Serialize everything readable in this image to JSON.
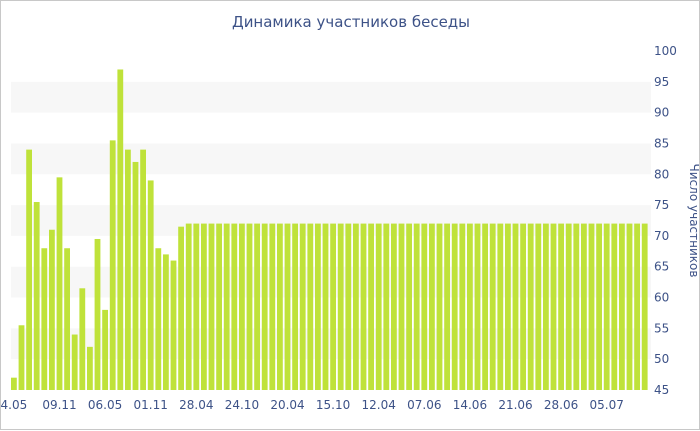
{
  "chart_data": {
    "type": "bar",
    "title": "Динамика участников беседы",
    "xlabel": "",
    "ylabel": "Число участников",
    "ylim": [
      45,
      100
    ],
    "y_ticks": [
      45,
      50,
      55,
      60,
      65,
      70,
      75,
      80,
      85,
      90,
      95,
      100
    ],
    "y_axis_position": "right",
    "grid": "alternating horizontal bands",
    "bar_color": "#bfe23a",
    "band_color": "#f7f7f7",
    "text_color": "#3d5287",
    "x_tick_labels": [
      {
        "index": 0,
        "label": "4.05"
      },
      {
        "index": 6,
        "label": "09.11"
      },
      {
        "index": 12,
        "label": "06.05"
      },
      {
        "index": 18,
        "label": "01.11"
      },
      {
        "index": 24,
        "label": "28.04"
      },
      {
        "index": 30,
        "label": "24.10"
      },
      {
        "index": 36,
        "label": "20.04"
      },
      {
        "index": 42,
        "label": "15.10"
      },
      {
        "index": 48,
        "label": "12.04"
      },
      {
        "index": 54,
        "label": "07.06"
      },
      {
        "index": 60,
        "label": "14.06"
      },
      {
        "index": 66,
        "label": "21.06"
      },
      {
        "index": 72,
        "label": "28.06"
      },
      {
        "index": 78,
        "label": "05.07"
      }
    ],
    "values": [
      47,
      55.5,
      84,
      75.5,
      68,
      71,
      79.5,
      68,
      54,
      61.5,
      52,
      69.5,
      58,
      85.5,
      97,
      84,
      82,
      84,
      79,
      68,
      67,
      66,
      71.5,
      72,
      72,
      72,
      72,
      72,
      72,
      72,
      72,
      72,
      72,
      72,
      72,
      72,
      72,
      72,
      72,
      72,
      72,
      72,
      72,
      72,
      72,
      72,
      72,
      72,
      72,
      72,
      72,
      72,
      72,
      72,
      72,
      72,
      72,
      72,
      72,
      72,
      72,
      72,
      72,
      72,
      72,
      72,
      72,
      72,
      72,
      72,
      72,
      72,
      72,
      72,
      72,
      72,
      72,
      72,
      72,
      72,
      72,
      72,
      72,
      72
    ]
  }
}
